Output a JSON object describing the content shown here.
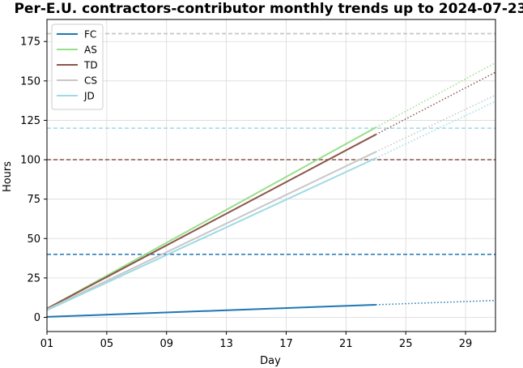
{
  "chart_data": {
    "type": "line",
    "title": "Per-E.U. contractors-contributor monthly trends up to 2024-07-23",
    "xlabel": "Day",
    "ylabel": "Hours",
    "xlim": [
      1,
      31
    ],
    "ylim": [
      -9,
      189
    ],
    "x_ticks": [
      1,
      5,
      9,
      13,
      17,
      21,
      25,
      29
    ],
    "x_tick_labels": [
      "01",
      "05",
      "09",
      "13",
      "17",
      "21",
      "25",
      "29"
    ],
    "y_ticks": [
      0,
      25,
      50,
      75,
      100,
      125,
      150,
      175
    ],
    "grid": true,
    "legend_position": "top-left",
    "actual_through_day": 23,
    "series": [
      {
        "name": "FC",
        "color": "#1f77b4",
        "actual": {
          "x": [
            1,
            23
          ],
          "y": [
            0.3,
            8.0
          ]
        },
        "projected": {
          "x": [
            23,
            31
          ],
          "y": [
            8.0,
            10.7
          ]
        },
        "target": 40
      },
      {
        "name": "AS",
        "color": "#98df8a",
        "actual": {
          "x": [
            1,
            23
          ],
          "y": [
            5.5,
            120.5
          ]
        },
        "projected": {
          "x": [
            23,
            31
          ],
          "y": [
            120.5,
            161.5
          ]
        },
        "target": 180
      },
      {
        "name": "TD",
        "color": "#8c564b",
        "actual": {
          "x": [
            1,
            23
          ],
          "y": [
            5.5,
            116.0
          ]
        },
        "projected": {
          "x": [
            23,
            31
          ],
          "y": [
            116.0,
            155.5
          ]
        },
        "target": 100
      },
      {
        "name": "CS",
        "color": "#c7c7c7",
        "actual": {
          "x": [
            1,
            23
          ],
          "y": [
            5.0,
            105.0
          ]
        },
        "projected": {
          "x": [
            23,
            31
          ],
          "y": [
            105.0,
            141.0
          ]
        },
        "target": 180
      },
      {
        "name": "JD",
        "color": "#9edae5",
        "actual": {
          "x": [
            1,
            23
          ],
          "y": [
            4.5,
            101.0
          ]
        },
        "projected": {
          "x": [
            23,
            31
          ],
          "y": [
            101.0,
            137.0
          ]
        },
        "target": 120
      }
    ]
  }
}
